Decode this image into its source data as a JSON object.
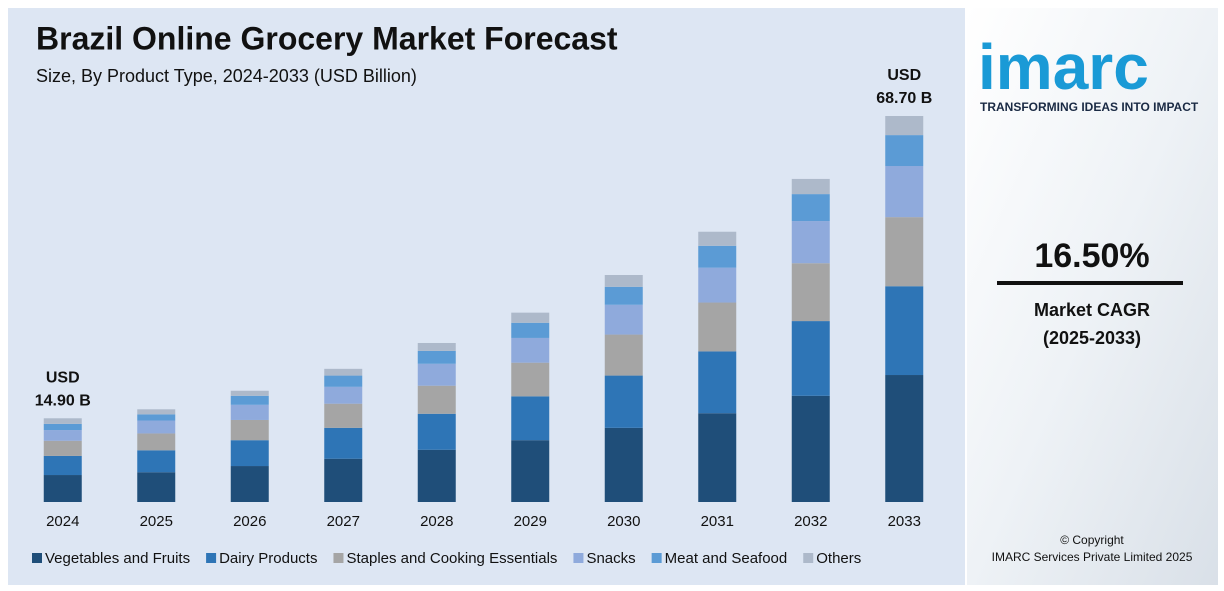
{
  "chart_data": {
    "type": "stacked_bar",
    "title": "Brazil Online Grocery Market Forecast",
    "subtitle": "Size, By Product Type, 2024-2033 (USD Billion)",
    "categories": [
      "2024",
      "2025",
      "2026",
      "2027",
      "2028",
      "2029",
      "2030",
      "2031",
      "2032",
      "2033"
    ],
    "series": [
      {
        "name": "Vegetables and Fruits",
        "color": "#1f4e79",
        "values": [
          4.8,
          5.3,
          6.4,
          7.7,
          9.3,
          11.0,
          13.2,
          15.8,
          18.9,
          22.6
        ]
      },
      {
        "name": "Dairy Products",
        "color": "#2e75b6",
        "values": [
          3.4,
          3.9,
          4.6,
          5.5,
          6.4,
          7.8,
          9.3,
          11.0,
          13.3,
          15.8
        ]
      },
      {
        "name": "Staples and Cooking Essentials",
        "color": "#a5a5a5",
        "values": [
          2.7,
          3.0,
          3.6,
          4.3,
          5.0,
          6.0,
          7.3,
          8.7,
          10.3,
          12.3
        ]
      },
      {
        "name": "Snacks",
        "color": "#8faadc",
        "values": [
          1.9,
          2.3,
          2.7,
          3.0,
          3.9,
          4.4,
          5.3,
          6.2,
          7.5,
          9.1
        ]
      },
      {
        "name": "Meat and Seafood",
        "color": "#5b9bd5",
        "values": [
          1.1,
          1.1,
          1.6,
          2.0,
          2.3,
          2.7,
          3.2,
          3.9,
          4.8,
          5.5
        ]
      },
      {
        "name": "Others",
        "color": "#adb9ca",
        "values": [
          1.0,
          0.9,
          0.9,
          1.2,
          1.4,
          1.8,
          2.1,
          2.5,
          2.7,
          3.4
        ]
      }
    ],
    "annotations": [
      [
        "USD",
        "14.90 B"
      ],
      [
        "USD",
        "68.70 B"
      ]
    ]
  },
  "sidebar": {
    "logo": "imarc",
    "tagline": "TRANSFORMING IDEAS INTO IMPACT",
    "cagr": "16.50%",
    "cagr_label": [
      "Market CAGR",
      "(2025-2033)"
    ],
    "copyright": [
      "© Copyright",
      "IMARC Services Private Limited 2025"
    ]
  }
}
